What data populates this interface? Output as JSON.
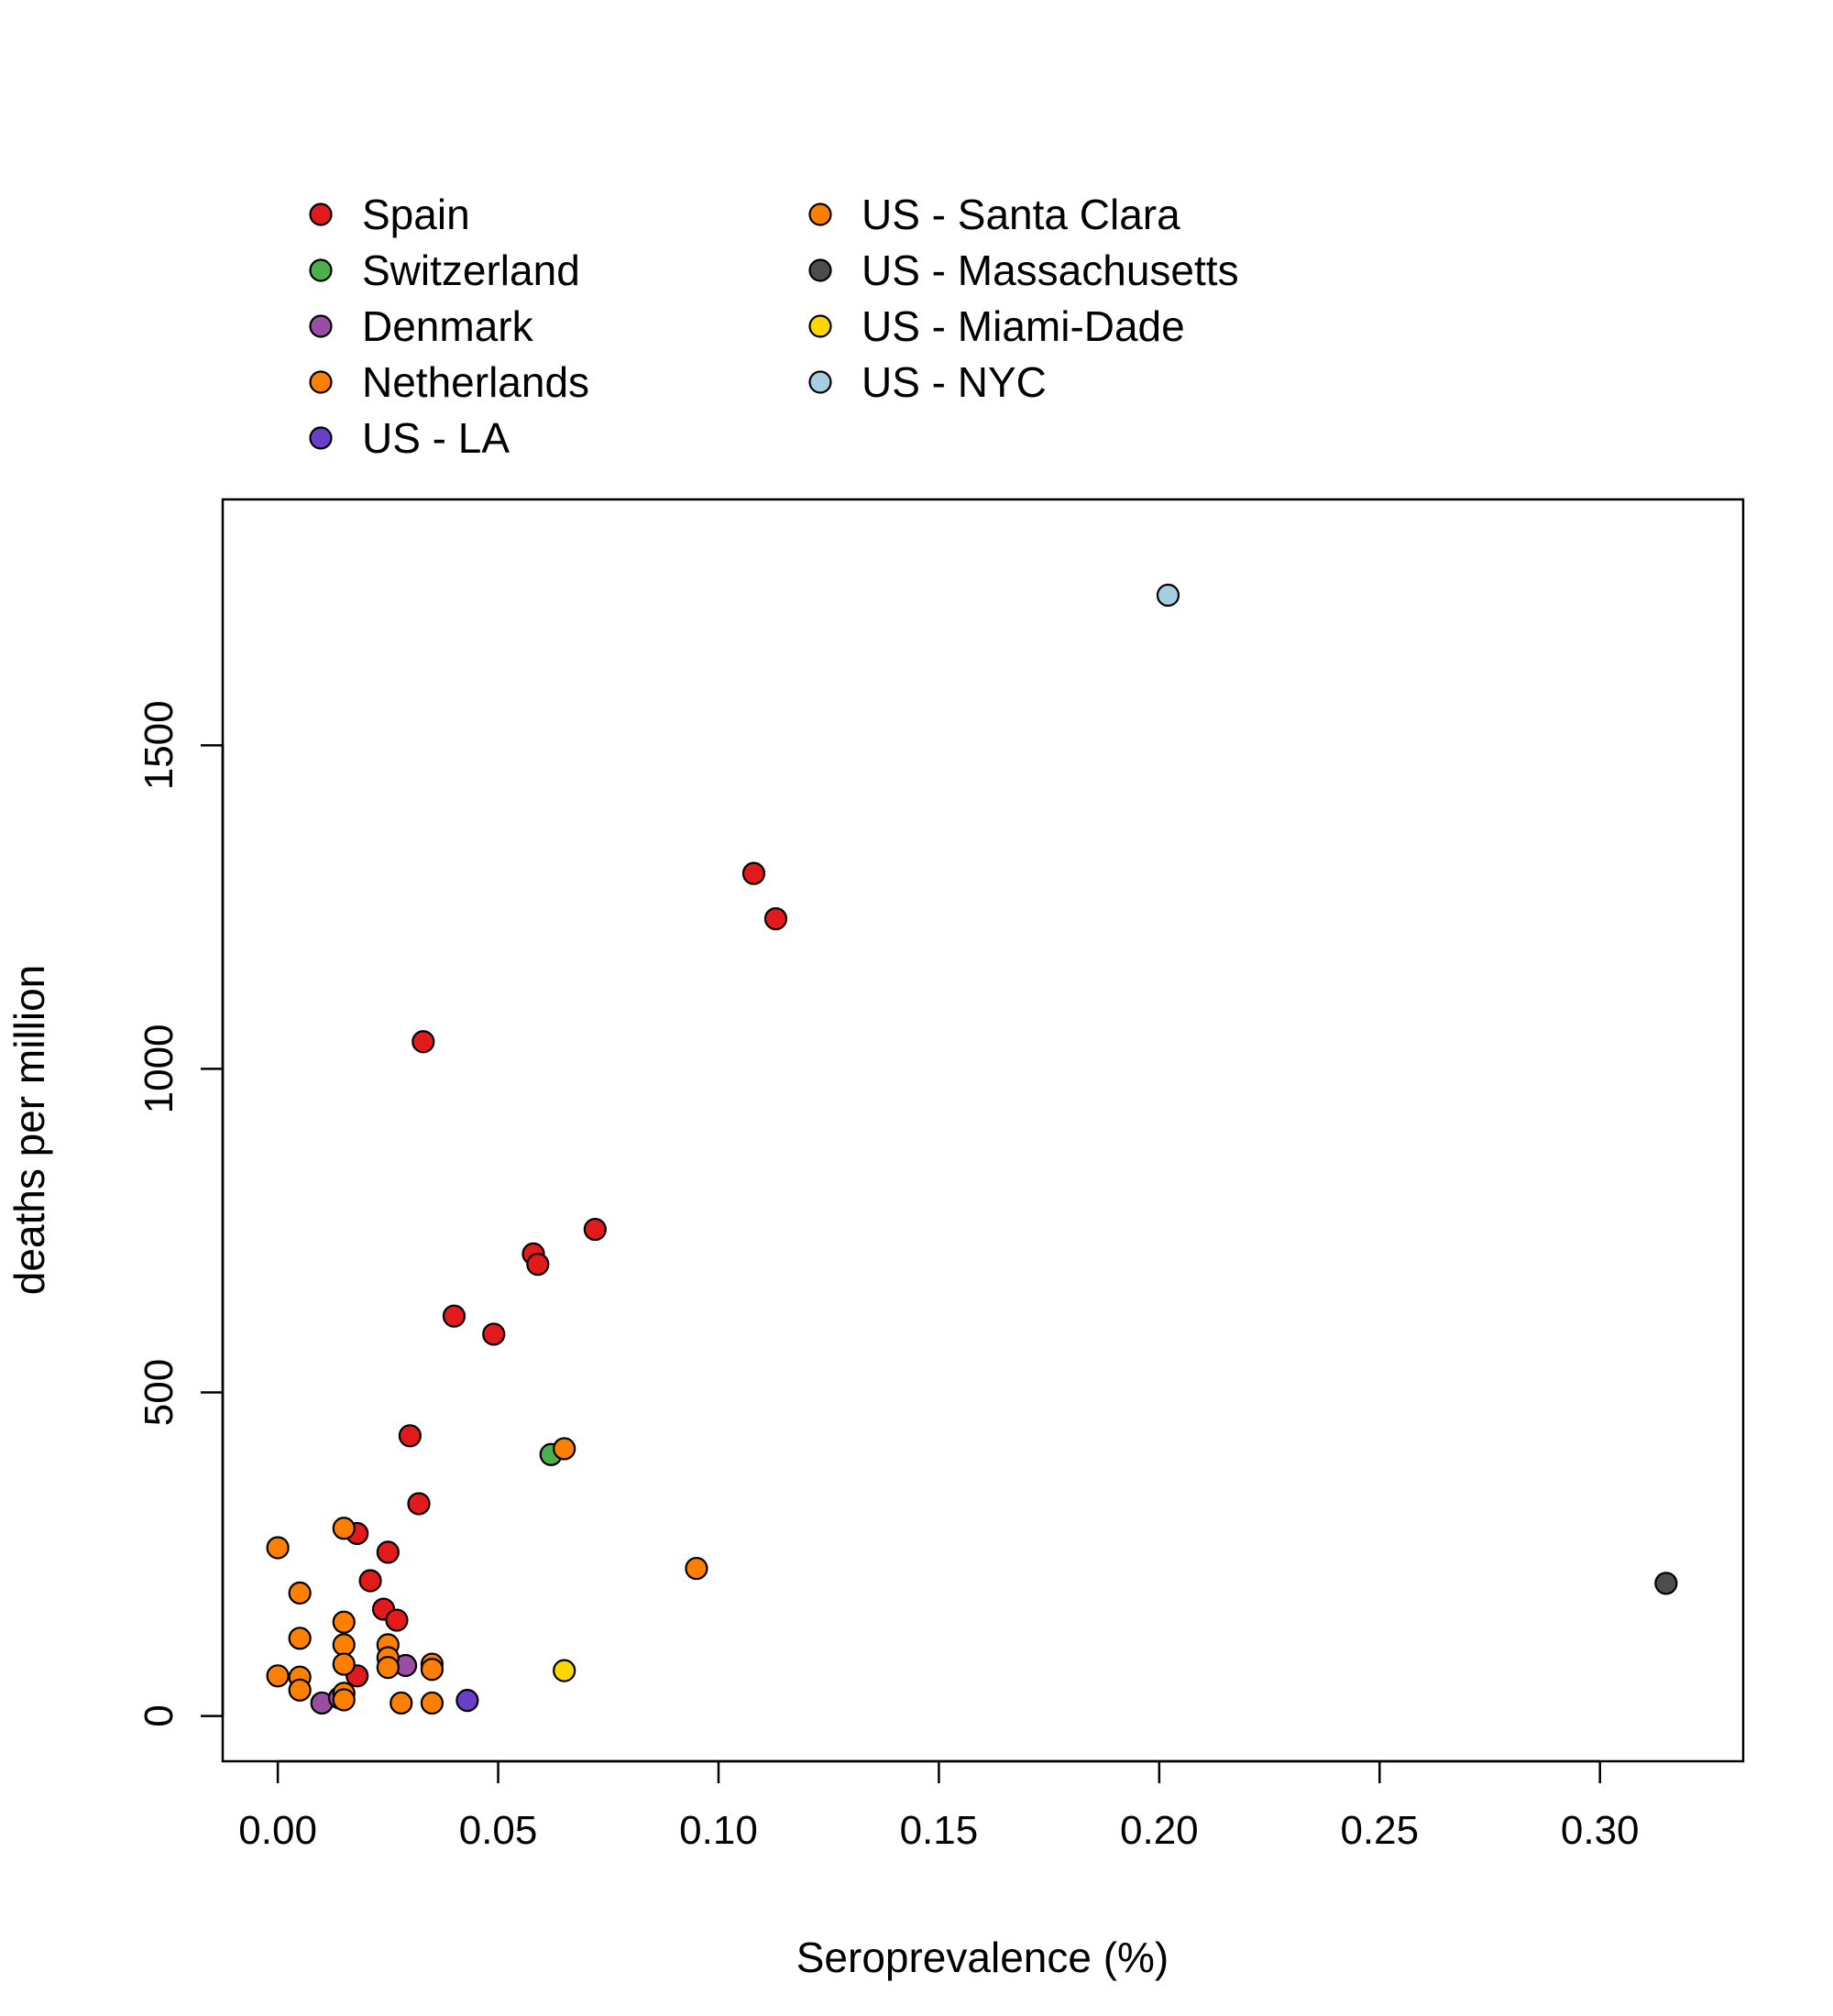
{
  "chart_data": {
    "type": "scatter",
    "xlabel": "Seroprevalence (%)",
    "ylabel": "deaths per million",
    "xlim": [
      -0.0125,
      0.3325
    ],
    "ylim": [
      -70,
      1880
    ],
    "x_ticks": [
      0.0,
      0.05,
      0.1,
      0.15,
      0.2,
      0.25,
      0.3
    ],
    "x_tick_labels": [
      "0.00",
      "0.05",
      "0.10",
      "0.15",
      "0.20",
      "0.25",
      "0.30"
    ],
    "y_ticks": [
      0,
      500,
      1000,
      1500
    ],
    "y_tick_labels": [
      "0",
      "500",
      "1000",
      "1500"
    ],
    "grid": false,
    "legend_position": "top-outside",
    "series": [
      {
        "name": "Spain",
        "color": "#E31A1C",
        "points": [
          [
            0.108,
            1302
          ],
          [
            0.113,
            1232
          ],
          [
            0.033,
            1042
          ],
          [
            0.072,
            752
          ],
          [
            0.058,
            714
          ],
          [
            0.059,
            698
          ],
          [
            0.04,
            618
          ],
          [
            0.049,
            590
          ],
          [
            0.03,
            433
          ],
          [
            0.032,
            328
          ],
          [
            0.018,
            282
          ],
          [
            0.025,
            253
          ],
          [
            0.021,
            209
          ],
          [
            0.024,
            165
          ],
          [
            0.027,
            148
          ],
          [
            0.018,
            62
          ]
        ]
      },
      {
        "name": "Switzerland",
        "color": "#4DAF4A",
        "points": [
          [
            0.062,
            404
          ]
        ]
      },
      {
        "name": "Denmark",
        "color": "#984EA3",
        "points": [
          [
            0.029,
            78
          ],
          [
            0.01,
            20
          ],
          [
            0.014,
            28
          ]
        ]
      },
      {
        "name": "Netherlands",
        "color": "#FF7F00",
        "points": [
          [
            0.0,
            260
          ],
          [
            0.005,
            190
          ],
          [
            0.005,
            120
          ],
          [
            0.015,
            290
          ],
          [
            0.015,
            145
          ],
          [
            0.015,
            110
          ],
          [
            0.015,
            80
          ],
          [
            0.015,
            35
          ],
          [
            0.015,
            25
          ],
          [
            0.025,
            110
          ],
          [
            0.025,
            90
          ],
          [
            0.025,
            75
          ],
          [
            0.028,
            20
          ],
          [
            0.035,
            80
          ],
          [
            0.035,
            72
          ],
          [
            0.035,
            20
          ],
          [
            0.0,
            62
          ],
          [
            0.005,
            60
          ],
          [
            0.005,
            40
          ],
          [
            0.065,
            413
          ]
        ]
      },
      {
        "name": "US - LA",
        "color": "#6A3FC8",
        "points": [
          [
            0.043,
            24
          ]
        ]
      },
      {
        "name": "US - Santa Clara",
        "color": "#FF7F00",
        "points": [
          [
            0.095,
            228
          ]
        ]
      },
      {
        "name": "US - Massachusetts",
        "color": "#4D4D4D",
        "points": [
          [
            0.315,
            205
          ]
        ]
      },
      {
        "name": "US - Miami-Dade",
        "color": "#FFD700",
        "points": [
          [
            0.065,
            70
          ]
        ]
      },
      {
        "name": "US - NYC",
        "color": "#A6CEE3",
        "points": [
          [
            0.202,
            1732
          ]
        ]
      }
    ]
  }
}
